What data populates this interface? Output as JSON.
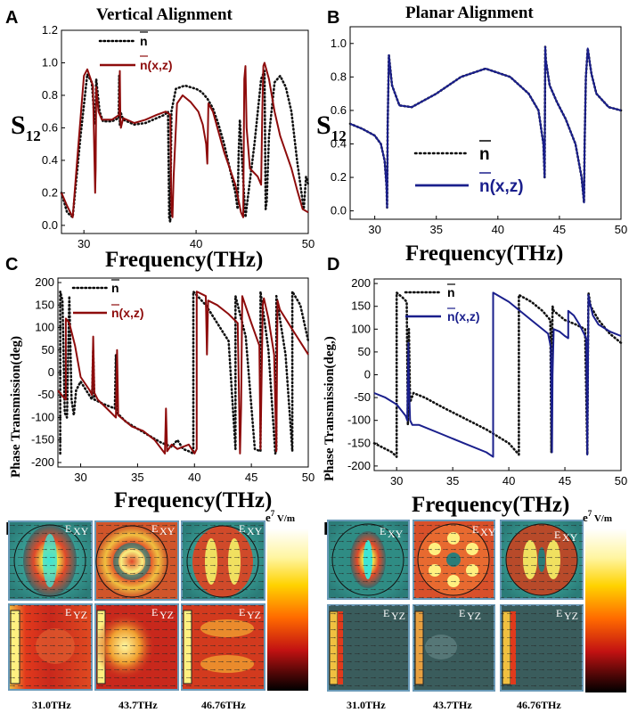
{
  "chart_data": [
    {
      "panel": "A",
      "type": "line",
      "title": "Vertical Alignment",
      "xlabel": "Frequency(THz)",
      "ylabel": "S12",
      "xlim": [
        28,
        50
      ],
      "ylim": [
        -0.05,
        1.2
      ],
      "xticks": [
        30,
        40,
        50
      ],
      "yticks": [
        0.0,
        0.2,
        0.4,
        0.6,
        0.8,
        1.0,
        1.2
      ],
      "yticklabels": [
        "0.0",
        "0.2",
        "0.4",
        "0.6",
        "0.8",
        "1.0",
        "1.2"
      ],
      "series": [
        {
          "name": "n̄",
          "style": "dotted",
          "color": "#111111",
          "x": [
            28,
            28.5,
            29,
            29.7,
            30.3,
            30.7,
            30.9,
            31.0,
            31.1,
            31.4,
            31.7,
            32.5,
            33.1,
            33.15,
            33.2,
            33.25,
            33.5,
            34.5,
            35.5,
            36.5,
            37.2,
            37.5,
            37.6,
            37.7,
            37.8,
            38.2,
            39.0,
            40.0,
            40.5,
            41.0,
            41.5,
            42.0,
            42.5,
            43.0,
            43.5,
            43.7,
            43.8,
            43.9,
            44.1,
            44.4,
            44.7,
            45.2,
            45.8,
            46.1,
            46.2,
            46.3,
            46.5,
            47.0,
            47.5,
            48.0,
            48.5,
            49.0,
            49.4,
            49.6,
            49.8,
            50.0
          ],
          "y": [
            0.2,
            0.08,
            0.05,
            0.55,
            0.93,
            0.88,
            0.7,
            0.62,
            0.9,
            0.7,
            0.64,
            0.64,
            0.66,
            0.92,
            0.62,
            0.7,
            0.65,
            0.62,
            0.63,
            0.66,
            0.68,
            0.7,
            0.05,
            0.02,
            0.7,
            0.84,
            0.86,
            0.84,
            0.82,
            0.78,
            0.72,
            0.62,
            0.5,
            0.35,
            0.2,
            0.1,
            0.45,
            0.65,
            0.4,
            0.05,
            0.22,
            0.5,
            0.9,
            0.95,
            0.1,
            0.15,
            0.55,
            0.88,
            0.92,
            0.85,
            0.7,
            0.4,
            0.2,
            0.1,
            0.3,
            0.25
          ]
        },
        {
          "name": "n̄(x,z)",
          "style": "solid",
          "color": "#8e0c0c",
          "x": [
            28,
            28.5,
            29,
            29.4,
            30.0,
            30.3,
            30.8,
            31.0,
            31.05,
            31.1,
            31.3,
            31.6,
            32.5,
            33.15,
            33.2,
            33.25,
            33.3,
            33.5,
            34.5,
            35.5,
            36.5,
            37.3,
            37.7,
            37.8,
            37.9,
            38.0,
            38.3,
            38.8,
            39.5,
            40.2,
            40.6,
            40.9,
            41.0,
            41.1,
            41.5,
            42.5,
            43.5,
            44.0,
            44.2,
            44.3,
            44.4,
            44.5,
            44.8,
            45.5,
            45.8,
            45.9,
            46.0,
            46.1,
            46.5,
            47.0,
            47.5,
            48.0,
            48.5,
            49.0,
            49.5,
            50.0
          ],
          "y": [
            0.2,
            0.12,
            0.05,
            0.4,
            0.92,
            0.96,
            0.86,
            0.2,
            0.35,
            0.85,
            0.7,
            0.65,
            0.65,
            0.68,
            0.95,
            0.65,
            0.6,
            0.66,
            0.63,
            0.65,
            0.68,
            0.7,
            0.68,
            0.1,
            0.05,
            0.3,
            0.75,
            0.8,
            0.76,
            0.7,
            0.62,
            0.5,
            0.38,
            0.75,
            0.7,
            0.45,
            0.25,
            0.08,
            0.05,
            0.9,
            0.98,
            0.6,
            0.35,
            0.3,
            0.25,
            0.7,
            0.98,
            1.0,
            0.9,
            0.7,
            0.55,
            0.45,
            0.35,
            0.22,
            0.1,
            0.08
          ]
        }
      ]
    },
    {
      "panel": "B",
      "type": "line",
      "title": "Planar Alignment",
      "xlabel": "Frequency(THz)",
      "ylabel": "S12",
      "xlim": [
        28,
        50
      ],
      "ylim": [
        -0.05,
        1.1
      ],
      "xticks": [
        30,
        35,
        40,
        45,
        50
      ],
      "yticks": [
        0.0,
        0.2,
        0.4,
        0.6,
        0.8,
        1.0
      ],
      "yticklabels": [
        "0.0",
        "0.2",
        "0.4",
        "0.6",
        "0.8",
        "1.0"
      ],
      "series": [
        {
          "name": "n̄",
          "style": "dotted",
          "color": "#111111",
          "x": [
            28,
            29,
            30,
            30.5,
            30.8,
            30.95,
            31.0,
            31.05,
            31.15,
            31.4,
            32,
            33,
            35,
            37,
            39,
            41,
            42.5,
            43.3,
            43.7,
            43.8,
            43.85,
            43.9,
            44.2,
            44.8,
            45.5,
            46.3,
            46.8,
            47.0,
            47.05,
            47.15,
            47.3,
            47.6,
            48,
            49,
            50
          ],
          "y": [
            0.52,
            0.49,
            0.45,
            0.4,
            0.3,
            0.15,
            0.02,
            0.5,
            0.93,
            0.75,
            0.63,
            0.62,
            0.7,
            0.8,
            0.85,
            0.8,
            0.7,
            0.6,
            0.4,
            0.2,
            0.98,
            0.9,
            0.75,
            0.65,
            0.55,
            0.4,
            0.2,
            0.05,
            0.4,
            0.8,
            0.97,
            0.82,
            0.7,
            0.62,
            0.6
          ]
        },
        {
          "name": "n̄(x,z)",
          "style": "solid",
          "color": "#1a1f8c",
          "x": [
            28,
            29,
            30,
            30.5,
            30.8,
            30.95,
            31.0,
            31.05,
            31.15,
            31.4,
            32,
            33,
            35,
            37,
            39,
            41,
            42.5,
            43.3,
            43.7,
            43.8,
            43.85,
            43.9,
            44.2,
            44.8,
            45.5,
            46.3,
            46.8,
            47.0,
            47.05,
            47.15,
            47.3,
            47.6,
            48,
            49,
            50
          ],
          "y": [
            0.52,
            0.49,
            0.45,
            0.4,
            0.3,
            0.15,
            0.02,
            0.5,
            0.93,
            0.75,
            0.63,
            0.62,
            0.7,
            0.8,
            0.85,
            0.8,
            0.7,
            0.6,
            0.4,
            0.2,
            0.98,
            0.9,
            0.75,
            0.65,
            0.55,
            0.4,
            0.2,
            0.05,
            0.4,
            0.8,
            0.97,
            0.82,
            0.7,
            0.62,
            0.6
          ]
        }
      ]
    },
    {
      "panel": "C",
      "type": "line",
      "xlabel": "Frequency(THz)",
      "ylabel": "Phase Transmission(deg)",
      "xlim": [
        28,
        50
      ],
      "ylim": [
        -210,
        210
      ],
      "xticks": [
        30,
        35,
        40,
        45,
        50
      ],
      "yticks": [
        -200,
        -150,
        -100,
        -50,
        0,
        50,
        100,
        150,
        200
      ],
      "yticklabels": [
        "-200",
        "-150",
        "-100",
        "-50",
        "0",
        "50",
        "100",
        "150",
        "200"
      ],
      "series": [
        {
          "name": "n̄",
          "style": "dotted",
          "color": "#111111",
          "x": [
            28.2,
            28.2,
            28.4,
            28.6,
            28.8,
            29.0,
            29.2,
            29.4,
            29.6,
            30.0,
            31.0,
            31.1,
            31.2,
            32.0,
            33.0,
            33.1,
            33.2,
            34.0,
            35.0,
            36.0,
            37.0,
            37.5,
            38.0,
            38.5,
            39.0,
            39.5,
            39.9,
            39.9,
            41.0,
            42.0,
            43.0,
            43.6,
            43.6,
            44.5,
            45.3,
            45.8,
            45.8,
            46.5,
            47.1,
            47.2,
            47.2,
            48.0,
            48.6,
            48.6,
            49.3,
            50.0
          ],
          "y": [
            -180,
            180,
            160,
            -90,
            -100,
            170,
            -60,
            -95,
            -40,
            -20,
            -60,
            50,
            -60,
            -70,
            -80,
            40,
            -90,
            -110,
            -125,
            -140,
            -155,
            -160,
            -165,
            -150,
            -170,
            -175,
            -180,
            180,
            150,
            110,
            70,
            -170,
            170,
            80,
            -170,
            -175,
            180,
            50,
            -180,
            -170,
            170,
            40,
            -175,
            180,
            150,
            70
          ]
        },
        {
          "name": "n̄(x,z)",
          "style": "solid",
          "color": "#8e0c0c",
          "x": [
            28.0,
            28.5,
            28.7,
            28.7,
            29.0,
            29.5,
            30.0,
            30.8,
            31.0,
            31.1,
            31.2,
            31.5,
            32.5,
            33.1,
            33.2,
            33.3,
            34.5,
            35.5,
            36.5,
            37.4,
            37.5,
            37.6,
            38.0,
            38.5,
            39.5,
            40.0,
            40.2,
            40.2,
            41.0,
            41.1,
            41.2,
            42.0,
            43.0,
            43.8,
            44.0,
            44.1,
            44.2,
            45.0,
            45.7,
            45.8,
            46.0,
            46.1,
            46.5,
            47.0,
            47.2,
            47.3,
            47.5,
            48.5,
            49.0,
            49.5,
            50.0
          ],
          "y": [
            -40,
            -55,
            -60,
            120,
            110,
            60,
            -10,
            -40,
            -50,
            80,
            -45,
            -60,
            -85,
            -100,
            50,
            -95,
            -120,
            -130,
            -150,
            -180,
            -80,
            -175,
            -160,
            -170,
            -160,
            -180,
            -170,
            180,
            170,
            40,
            160,
            150,
            130,
            110,
            -180,
            -80,
            170,
            110,
            60,
            -170,
            150,
            165,
            120,
            40,
            -175,
            160,
            140,
            100,
            80,
            60,
            40
          ]
        }
      ]
    },
    {
      "panel": "D",
      "type": "line",
      "xlabel": "Frequency(THz)",
      "ylabel": "Phase Transmission(deg)",
      "xlim": [
        28,
        50
      ],
      "ylim": [
        -210,
        210
      ],
      "xticks": [
        30,
        35,
        40,
        45,
        50
      ],
      "yticks": [
        -200,
        -150,
        -100,
        -50,
        0,
        50,
        100,
        150,
        200
      ],
      "yticklabels": [
        "-200",
        "-150",
        "-100",
        "-50",
        "0",
        "50",
        "100",
        "150",
        "200"
      ],
      "series": [
        {
          "name": "n̄",
          "style": "dotted",
          "color": "#111111",
          "x": [
            28.0,
            28.8,
            29.6,
            30.0,
            30.0,
            30.5,
            30.9,
            30.95,
            31.0,
            31.1,
            31.2,
            31.5,
            32.5,
            34.0,
            36.0,
            38.0,
            40.0,
            40.9,
            40.9,
            42.0,
            43.0,
            43.7,
            43.8,
            43.85,
            43.9,
            44.0,
            45.0,
            46.0,
            46.8,
            47.0,
            47.05,
            47.1,
            47.3,
            48.0,
            49.0,
            50.0
          ],
          "y": [
            -150,
            -160,
            -170,
            -180,
            180,
            170,
            160,
            40,
            -110,
            100,
            -60,
            -40,
            -50,
            -70,
            -95,
            -120,
            -150,
            -175,
            175,
            160,
            140,
            120,
            -170,
            50,
            150,
            140,
            120,
            110,
            100,
            -175,
            40,
            180,
            150,
            120,
            90,
            70
          ]
        },
        {
          "name": "n̄(x,z)",
          "style": "solid",
          "color": "#1a1f8c",
          "x": [
            28.0,
            29.0,
            30.0,
            30.8,
            30.95,
            31.05,
            31.1,
            31.2,
            31.4,
            32.0,
            34.0,
            36.0,
            38.0,
            38.6,
            38.6,
            40.0,
            42.0,
            43.5,
            43.75,
            43.85,
            43.9,
            44.0,
            44.5,
            45.0,
            45.3,
            45.3,
            45.8,
            46.3,
            46.9,
            47.0,
            47.05,
            47.1,
            47.2,
            47.5,
            48.0,
            49.0,
            50.0
          ],
          "y": [
            -40,
            -50,
            -65,
            -90,
            -100,
            70,
            -20,
            -100,
            -110,
            -110,
            -130,
            -150,
            -170,
            -180,
            180,
            160,
            120,
            90,
            60,
            -170,
            0,
            100,
            95,
            85,
            80,
            140,
            130,
            110,
            80,
            -175,
            0,
            175,
            160,
            130,
            110,
            95,
            85
          ]
        }
      ]
    }
  ],
  "labels": {
    "A": "A",
    "B": "B",
    "C": "C",
    "D": "D",
    "E": "E",
    "F": "F",
    "title_a": "Vertical Alignment",
    "title_b": "Planar Alignment",
    "xlabel": "Frequency(THz)",
    "s12_S": "S",
    "s12_sub": "12",
    "phase_c": "Phase Transmission(deg)",
    "phase_d": "Phase Transmission(deg,)",
    "leg_n": "n",
    "leg_nxz": "n(x,z)"
  },
  "field_maps": {
    "E": {
      "tiles_top": [
        "E",
        "E",
        "E"
      ],
      "tiles_top_sub": [
        "XY",
        "XY",
        "XY"
      ],
      "tiles_bottom": [
        "E",
        "E",
        "E"
      ],
      "tiles_bottom_sub": [
        "YZ",
        "YZ",
        "YZ"
      ],
      "freqs": [
        "31.0THz",
        "43.7THz",
        "46.76THz"
      ],
      "colorbar_label": "e",
      "colorbar_exp": "7",
      "colorbar_unit": " V/m"
    },
    "F": {
      "tiles_top": [
        "E",
        "E",
        "E"
      ],
      "tiles_top_sub": [
        "XY",
        "XY",
        "XY"
      ],
      "tiles_bottom": [
        "E",
        "E",
        "E"
      ],
      "tiles_bottom_sub": [
        "YZ",
        "YZ",
        "YZ"
      ],
      "freqs": [
        "31.0THz",
        "43.7THz",
        "46.76THz"
      ],
      "colorbar_label": "e",
      "colorbar_exp": "7",
      "colorbar_unit": " V/m"
    }
  }
}
